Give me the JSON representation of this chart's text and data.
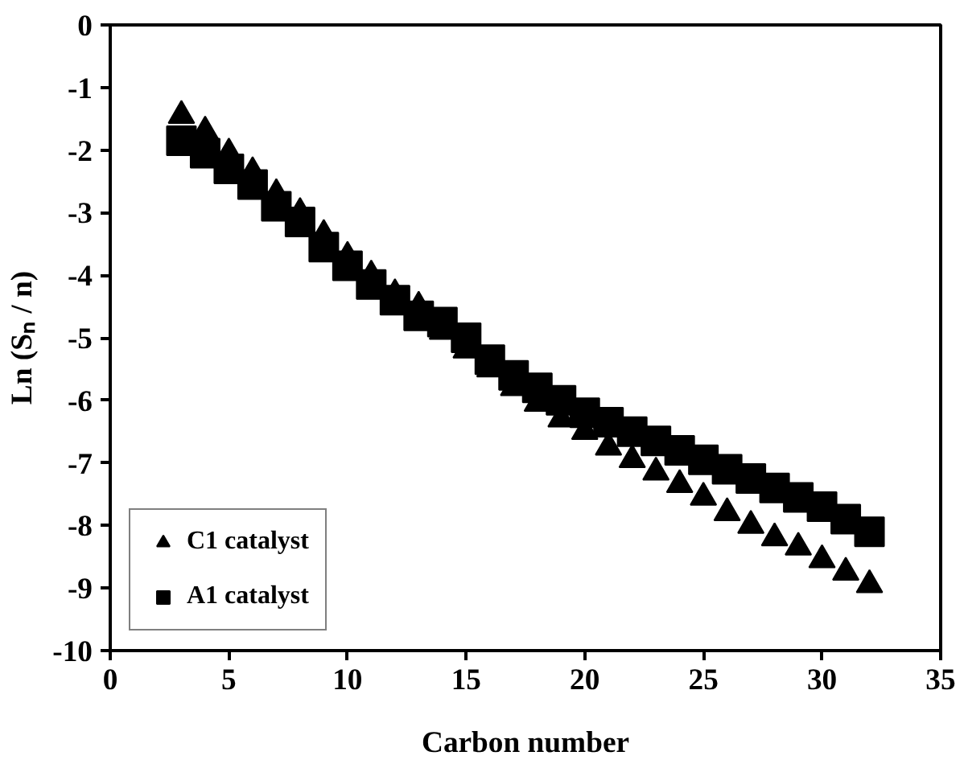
{
  "chart_data": {
    "type": "scatter",
    "xlabel": "Carbon number",
    "ylabel": "Ln (Sₙ / n)",
    "x": [
      3,
      4,
      5,
      6,
      7,
      8,
      9,
      10,
      11,
      12,
      13,
      14,
      15,
      16,
      17,
      18,
      19,
      20,
      21,
      22,
      23,
      24,
      25,
      26,
      27,
      28,
      29,
      30,
      31,
      32
    ],
    "series": [
      {
        "name": "C1 catalyst",
        "color": "#000000",
        "marker": "triangle",
        "values": [
          -1.45,
          -1.7,
          -2.05,
          -2.35,
          -2.7,
          -3.0,
          -3.35,
          -3.7,
          -4.0,
          -4.3,
          -4.5,
          -4.9,
          -5.2,
          -5.5,
          -5.8,
          -6.05,
          -6.3,
          -6.5,
          -6.75,
          -6.95,
          -7.15,
          -7.35,
          -7.55,
          -7.8,
          -8.0,
          -8.2,
          -8.35,
          -8.55,
          -8.75,
          -8.95
        ]
      },
      {
        "name": "A1 catalyst",
        "color": "#000000",
        "marker": "square",
        "values": [
          -1.85,
          -2.05,
          -2.3,
          -2.55,
          -2.9,
          -3.15,
          -3.55,
          -3.85,
          -4.15,
          -4.4,
          -4.65,
          -4.75,
          -5.0,
          -5.35,
          -5.6,
          -5.8,
          -6.0,
          -6.2,
          -6.35,
          -6.5,
          -6.65,
          -6.8,
          -6.95,
          -7.1,
          -7.25,
          -7.4,
          -7.55,
          -7.7,
          -7.9,
          -8.1
        ]
      }
    ],
    "xlim": [
      0,
      35
    ],
    "xticks": [
      0,
      5,
      10,
      15,
      20,
      25,
      30,
      35
    ],
    "ylim": [
      -10,
      0
    ],
    "yticks": [
      -10,
      -9,
      -8,
      -7,
      -6,
      -5,
      -4,
      -3,
      -2,
      -1,
      0
    ],
    "grid": false,
    "legend": "bottom left"
  }
}
